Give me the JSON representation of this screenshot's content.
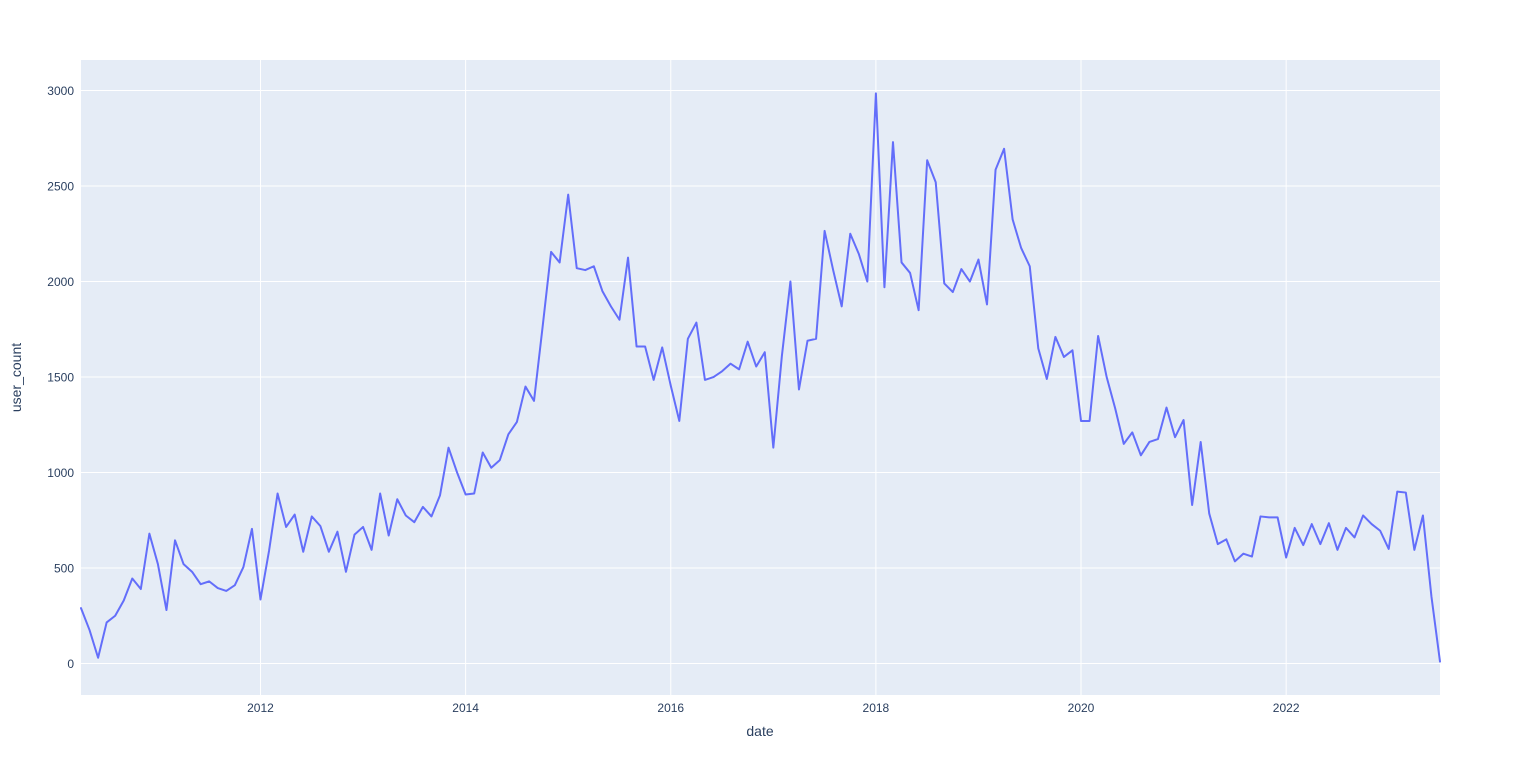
{
  "page": {
    "background_color": "#ffffff"
  },
  "chart_data": {
    "type": "line",
    "title": "",
    "xlabel": "date",
    "ylabel": "user_count",
    "legend": false,
    "grid": true,
    "plot_bgcolor": "#e5ecf6",
    "gridline_color": "#ffffff",
    "text_color": "#2a3f5f",
    "line_color": "#636efa",
    "xticks": [
      "2012",
      "2014",
      "2016",
      "2018",
      "2020",
      "2022"
    ],
    "yticks": [
      0,
      500,
      1000,
      1500,
      2000,
      2500,
      3000
    ],
    "ylim": [
      -165,
      3160
    ],
    "x_start": "2010-04",
    "x_end": "2023-07",
    "x_freq": "monthly",
    "series": [
      {
        "name": "user_count",
        "values": [
          290,
          175,
          30,
          215,
          250,
          330,
          445,
          390,
          680,
          520,
          280,
          645,
          520,
          480,
          415,
          430,
          395,
          380,
          410,
          505,
          705,
          335,
          590,
          890,
          715,
          780,
          585,
          770,
          720,
          585,
          690,
          480,
          675,
          715,
          595,
          890,
          670,
          860,
          775,
          740,
          820,
          770,
          880,
          1130,
          1000,
          885,
          890,
          1105,
          1025,
          1065,
          1200,
          1265,
          1450,
          1375,
          1760,
          2155,
          2100,
          2455,
          2070,
          2060,
          2080,
          1950,
          1870,
          1800,
          2125,
          1660,
          1660,
          1485,
          1655,
          1455,
          1270,
          1700,
          1785,
          1485,
          1500,
          1530,
          1570,
          1540,
          1685,
          1555,
          1630,
          1130,
          1610,
          2000,
          1435,
          1690,
          1700,
          2265,
          2060,
          1870,
          2250,
          2145,
          2000,
          2985,
          1970,
          2730,
          2100,
          2045,
          1850,
          2635,
          2520,
          1990,
          1945,
          2065,
          2000,
          2115,
          1880,
          2585,
          2695,
          2325,
          2175,
          2080,
          1650,
          1490,
          1710,
          1605,
          1640,
          1270,
          1270,
          1715,
          1500,
          1335,
          1150,
          1210,
          1090,
          1160,
          1175,
          1340,
          1185,
          1275,
          830,
          1160,
          785,
          625,
          650,
          535,
          575,
          560,
          770,
          765,
          765,
          555,
          710,
          620,
          730,
          625,
          735,
          595,
          710,
          660,
          775,
          730,
          695,
          600,
          900,
          895,
          595,
          775,
          350,
          10
        ]
      }
    ]
  }
}
